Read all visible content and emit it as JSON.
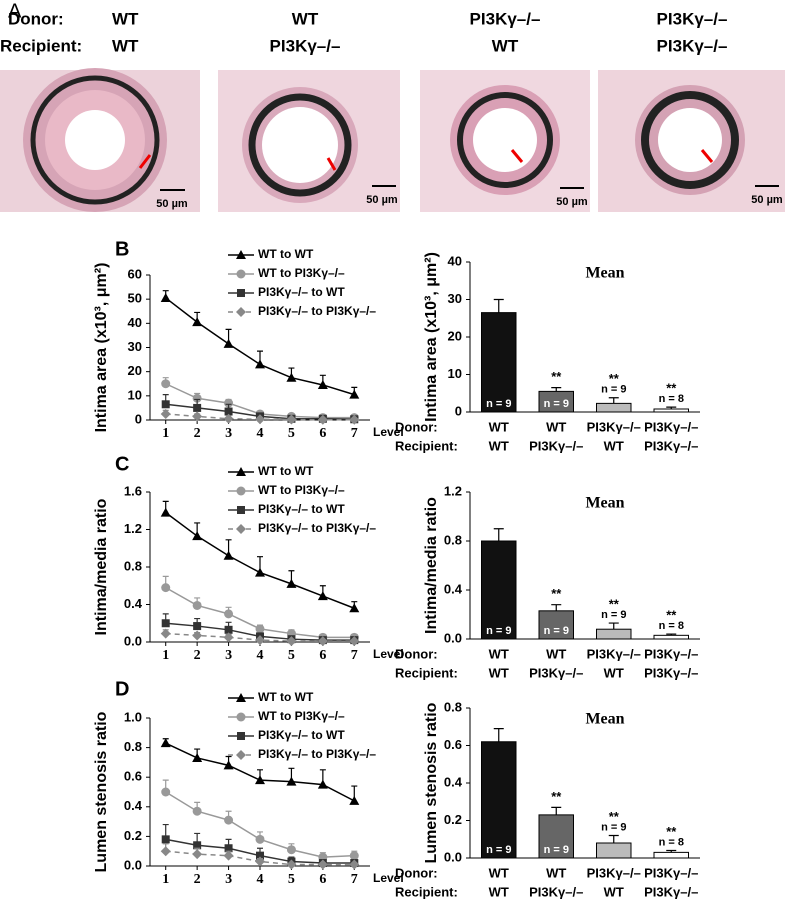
{
  "panel_labels": [
    "A",
    "B",
    "C",
    "D"
  ],
  "panel_a": {
    "row_labels": [
      "Donor:",
      "Recipient:"
    ],
    "columns": [
      {
        "donor": "WT",
        "recipient": "WT"
      },
      {
        "donor": "WT",
        "recipient": "PI3Kγ–/–"
      },
      {
        "donor": "PI3Kγ–/–",
        "recipient": "WT"
      },
      {
        "donor": "PI3Kγ–/–",
        "recipient": "PI3Kγ–/–"
      }
    ],
    "scale_bar": "50 µm"
  },
  "chart_data": [
    {
      "type": "line",
      "y_label": "Intima area (x10³, μm²)",
      "x_label": "Level",
      "x": [
        1,
        2,
        3,
        4,
        5,
        6,
        7
      ],
      "xlim": [
        0.5,
        7.5
      ],
      "ylim": [
        0,
        60
      ],
      "yticks": [
        0,
        10,
        20,
        30,
        40,
        50,
        60
      ],
      "series": [
        {
          "name": "WT to WT",
          "color": "#000000",
          "values": [
            50.5,
            40.5,
            31.5,
            23,
            17.5,
            14.5,
            10.5
          ],
          "errors": [
            3,
            4,
            6,
            5.5,
            4,
            4,
            3
          ]
        },
        {
          "name": "WT to PI3Kγ–/–",
          "color": "#999999",
          "values": [
            15,
            9,
            7,
            2.5,
            1.5,
            1,
            1
          ],
          "errors": [
            2.5,
            2,
            1.5,
            1,
            0.8,
            0.5,
            0.5
          ]
        },
        {
          "name": "PI3Kγ–/– to WT",
          "color": "#333333",
          "values": [
            6.5,
            5,
            3.5,
            1.5,
            0.5,
            0.5,
            0.3
          ],
          "errors": [
            4,
            3.5,
            3,
            1,
            0.5,
            0.3,
            0.2
          ]
        },
        {
          "name": "PI3Kγ–/– to PI3Kγ–/–",
          "color": "#888888",
          "values": [
            2.5,
            1.5,
            0.5,
            0.3,
            0.2,
            0.1,
            0.1
          ],
          "errors": [
            1.5,
            1,
            0.5,
            0.3,
            0.2,
            0.1,
            0.1
          ]
        }
      ]
    },
    {
      "type": "bar",
      "title": "Mean",
      "y_label": "Intima area (x10³, μm²)",
      "row_labels": [
        "Donor:",
        "Recipient:"
      ],
      "categories": [
        [
          "WT",
          "WT"
        ],
        [
          "WT",
          "PI3Kγ–/–"
        ],
        [
          "PI3Kγ–/–",
          "WT"
        ],
        [
          "PI3Kγ–/–",
          "PI3Kγ–/–"
        ]
      ],
      "values": [
        26.5,
        5.5,
        2.3,
        0.8
      ],
      "errors": [
        3.5,
        1,
        1.5,
        0.5
      ],
      "colors": [
        "#111111",
        "#666666",
        "#bbbbbb",
        "#ffffff"
      ],
      "n_labels": [
        "n = 9",
        "n = 9",
        "n = 9",
        "n = 8"
      ],
      "significance": [
        null,
        "**",
        "**",
        "**"
      ],
      "ylim": [
        0,
        40
      ],
      "yticks": [
        0,
        10,
        20,
        30,
        40
      ]
    },
    {
      "type": "line",
      "y_label": "Intima/media ratio",
      "x_label": "Level",
      "x": [
        1,
        2,
        3,
        4,
        5,
        6,
        7
      ],
      "xlim": [
        0.5,
        7.5
      ],
      "ylim": [
        0,
        1.6
      ],
      "yticks": [
        {
          "value": 0,
          "label": "0.0"
        },
        0.4,
        0.8,
        1.2,
        1.6
      ],
      "series": [
        {
          "name": "WT to WT",
          "color": "#000000",
          "values": [
            1.38,
            1.13,
            0.92,
            0.74,
            0.62,
            0.49,
            0.36
          ],
          "errors": [
            0.12,
            0.14,
            0.17,
            0.17,
            0.14,
            0.11,
            0.07
          ]
        },
        {
          "name": "WT to PI3Kγ–/–",
          "color": "#999999",
          "values": [
            0.58,
            0.39,
            0.3,
            0.14,
            0.09,
            0.05,
            0.05
          ],
          "errors": [
            0.12,
            0.08,
            0.07,
            0.04,
            0.04,
            0.03,
            0.03
          ]
        },
        {
          "name": "PI3Kγ–/– to WT",
          "color": "#333333",
          "values": [
            0.2,
            0.17,
            0.13,
            0.06,
            0.03,
            0.02,
            0.02
          ],
          "errors": [
            0.1,
            0.08,
            0.08,
            0.03,
            0.02,
            0.01,
            0.01
          ]
        },
        {
          "name": "PI3Kγ–/– to PI3Kγ–/–",
          "color": "#888888",
          "values": [
            0.09,
            0.07,
            0.05,
            0.02,
            0.01,
            0.01,
            0.01
          ],
          "errors": [
            0.04,
            0.03,
            0.03,
            0.01,
            0.01,
            0.01,
            0.01
          ]
        }
      ]
    },
    {
      "type": "bar",
      "title": "Mean",
      "y_label": "Intima/media ratio",
      "row_labels": [
        "Donor:",
        "Recipient:"
      ],
      "categories": [
        [
          "WT",
          "WT"
        ],
        [
          "WT",
          "PI3Kγ–/–"
        ],
        [
          "PI3Kγ–/–",
          "WT"
        ],
        [
          "PI3Kγ–/–",
          "PI3Kγ–/–"
        ]
      ],
      "values": [
        0.8,
        0.23,
        0.08,
        0.03
      ],
      "errors": [
        0.1,
        0.05,
        0.05,
        0.01
      ],
      "colors": [
        "#111111",
        "#666666",
        "#bbbbbb",
        "#ffffff"
      ],
      "n_labels": [
        "n = 9",
        "n = 9",
        "n = 9",
        "n = 8"
      ],
      "significance": [
        null,
        "**",
        "**",
        "**"
      ],
      "ylim": [
        0,
        1.2
      ],
      "yticks": [
        {
          "value": 0,
          "label": "0.0"
        },
        0.4,
        0.8,
        1.2
      ]
    },
    {
      "type": "line",
      "y_label": "Lumen stenosis ratio",
      "x_label": "Level",
      "x": [
        1,
        2,
        3,
        4,
        5,
        6,
        7
      ],
      "xlim": [
        0.5,
        7.5
      ],
      "ylim": [
        0,
        1.0
      ],
      "yticks": [
        {
          "value": 0,
          "label": "0.0"
        },
        0.2,
        0.4,
        0.6,
        0.8,
        {
          "value": 1.0,
          "label": "1.0"
        }
      ],
      "series": [
        {
          "name": "WT to WT",
          "color": "#000000",
          "values": [
            0.83,
            0.73,
            0.68,
            0.58,
            0.57,
            0.55,
            0.44
          ],
          "errors": [
            0.03,
            0.06,
            0.06,
            0.07,
            0.09,
            0.1,
            0.1
          ]
        },
        {
          "name": "WT to PI3Kγ–/–",
          "color": "#999999",
          "values": [
            0.5,
            0.37,
            0.31,
            0.18,
            0.11,
            0.06,
            0.07
          ],
          "errors": [
            0.08,
            0.06,
            0.06,
            0.05,
            0.04,
            0.03,
            0.03
          ]
        },
        {
          "name": "PI3Kγ–/– to WT",
          "color": "#333333",
          "values": [
            0.18,
            0.14,
            0.12,
            0.07,
            0.03,
            0.02,
            0.02
          ],
          "errors": [
            0.1,
            0.08,
            0.06,
            0.05,
            0.03,
            0.02,
            0.02
          ]
        },
        {
          "name": "PI3Kγ–/– to PI3Kγ–/–",
          "color": "#888888",
          "values": [
            0.1,
            0.08,
            0.07,
            0.03,
            0.01,
            0.01,
            0.01
          ],
          "errors": [
            0.05,
            0.04,
            0.03,
            0.02,
            0.01,
            0.01,
            0.01
          ]
        }
      ]
    },
    {
      "type": "bar",
      "title": "Mean",
      "y_label": "Lumen stenosis ratio",
      "row_labels": [
        "Donor:",
        "Recipient:"
      ],
      "categories": [
        [
          "WT",
          "WT"
        ],
        [
          "WT",
          "PI3Kγ–/–"
        ],
        [
          "PI3Kγ–/–",
          "WT"
        ],
        [
          "PI3Kγ–/–",
          "PI3Kγ–/–"
        ]
      ],
      "values": [
        0.62,
        0.23,
        0.08,
        0.03
      ],
      "errors": [
        0.07,
        0.04,
        0.04,
        0.01
      ],
      "colors": [
        "#111111",
        "#666666",
        "#bbbbbb",
        "#ffffff"
      ],
      "n_labels": [
        "n = 9",
        "n = 9",
        "n = 9",
        "n = 8"
      ],
      "significance": [
        null,
        "**",
        "**",
        "**"
      ],
      "ylim": [
        0,
        0.8
      ],
      "yticks": [
        {
          "value": 0,
          "label": "0.0"
        },
        0.2,
        0.4,
        0.6,
        0.8
      ]
    }
  ]
}
